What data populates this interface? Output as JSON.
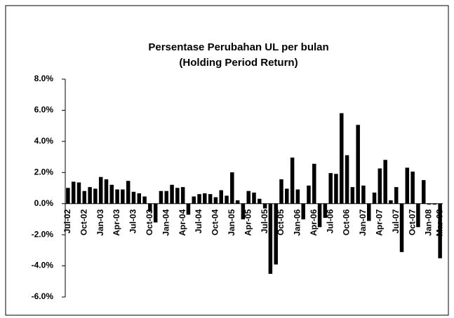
{
  "chart_data": {
    "type": "bar",
    "title": "Persentase Perubahan UL per bulan",
    "subtitle": "(Holding Period Return)",
    "categories": [
      "Jul-02",
      null,
      null,
      "Oct-02",
      null,
      null,
      "Jan-03",
      null,
      null,
      "Apr-03",
      null,
      null,
      "Jul-03",
      null,
      null,
      "Oct-03",
      null,
      null,
      "Jan-04",
      null,
      null,
      "Apr-04",
      null,
      null,
      "Jul-04",
      null,
      null,
      "Oct-04",
      null,
      null,
      "Jan-05",
      null,
      null,
      "Apr-05",
      null,
      null,
      "Jul-05",
      null,
      null,
      "Oct-05",
      null,
      null,
      "Jan-06",
      null,
      null,
      "Apr-06",
      null,
      null,
      "Jul-06",
      null,
      null,
      "Oct-06",
      null,
      null,
      "Jan-07",
      null,
      null,
      "Apr-07",
      null,
      null,
      "Jul-07",
      null,
      null,
      "Oct-07",
      null,
      null,
      "Jan-08",
      null,
      "Mar-08"
    ],
    "values": [
      1.0,
      1.4,
      1.35,
      0.8,
      1.05,
      0.95,
      1.7,
      1.55,
      1.2,
      0.9,
      0.9,
      1.45,
      0.75,
      0.65,
      0.45,
      -0.5,
      -1.2,
      0.8,
      0.8,
      1.2,
      1.0,
      1.05,
      -0.7,
      0.45,
      0.6,
      0.65,
      0.6,
      0.4,
      0.85,
      0.5,
      2.0,
      0.2,
      -1.0,
      0.8,
      0.7,
      0.3,
      -0.3,
      -4.5,
      -3.9,
      1.55,
      0.95,
      2.95,
      0.9,
      -1.0,
      1.15,
      2.55,
      -1.5,
      -0.9,
      1.95,
      1.9,
      5.8,
      3.1,
      1.05,
      5.05,
      1.15,
      -1.1,
      0.7,
      2.25,
      2.8,
      0.2,
      1.05,
      -3.1,
      2.3,
      2.05,
      -1.5,
      1.5,
      -0.05,
      -0.05,
      -3.5
    ],
    "color": "#000000",
    "ylim": [
      -6,
      8
    ],
    "yticks": [
      {
        "value": -6,
        "label": "-6.0%"
      },
      {
        "value": -4,
        "label": "-4.0%"
      },
      {
        "value": -2,
        "label": "-2.0%"
      },
      {
        "value": 0,
        "label": "0.0%"
      },
      {
        "value": 2,
        "label": "2.0%"
      },
      {
        "value": 4,
        "label": "4.0%"
      },
      {
        "value": 6,
        "label": "6.0%"
      },
      {
        "value": 8,
        "label": "8.0%"
      }
    ],
    "grid": false
  }
}
